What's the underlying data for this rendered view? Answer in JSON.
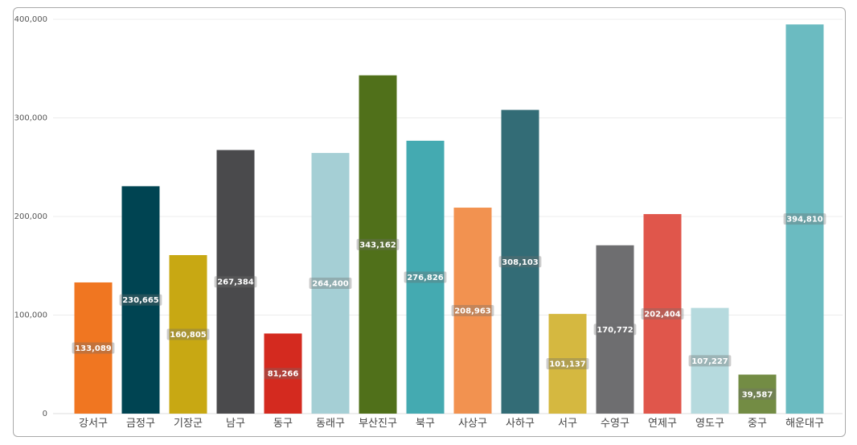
{
  "chart_data": {
    "type": "bar",
    "categories": [
      "강서구",
      "금정구",
      "기장군",
      "남구",
      "동구",
      "동래구",
      "부산진구",
      "북구",
      "사상구",
      "사하구",
      "서구",
      "수영구",
      "연제구",
      "영도구",
      "중구",
      "해운대구"
    ],
    "values": [
      133089,
      230665,
      160805,
      267384,
      81266,
      264400,
      343162,
      276826,
      208963,
      308103,
      101137,
      170772,
      202404,
      107227,
      39587,
      394810
    ],
    "data_labels": [
      "133,089",
      "230,665",
      "160,805",
      "267,384",
      "81,266",
      "264,400",
      "343,162",
      "276,826",
      "208,963",
      "308,103",
      "101,137",
      "170,772",
      "202,404",
      "107,227",
      "39,587",
      "394,810"
    ],
    "colors": [
      "#F07621",
      "#004452",
      "#C8A813",
      "#4A4A4C",
      "#D42A1F",
      "#A5CFD5",
      "#50701A",
      "#44AAB1",
      "#F29250",
      "#336C76",
      "#D5B840",
      "#6E6E70",
      "#E0564B",
      "#B6DADE",
      "#738C44",
      "#6BBBC1"
    ],
    "yticks": [
      0,
      100000,
      200000,
      300000,
      400000
    ],
    "ytick_labels": [
      "0",
      "100,000",
      "200,000",
      "300,000",
      "400,000"
    ],
    "ylim": [
      0,
      400000
    ],
    "title": "",
    "xlabel": "",
    "ylabel": "",
    "grid": true,
    "legend": "none"
  }
}
